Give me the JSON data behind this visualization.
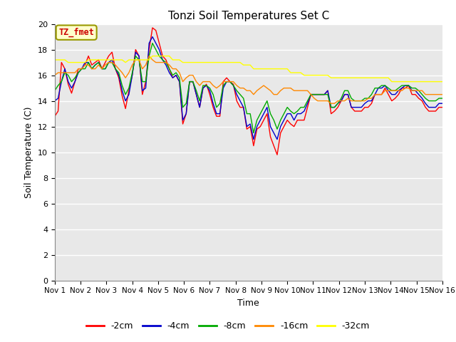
{
  "title": "Tonzi Soil Temperatures Set C",
  "xlabel": "Time",
  "ylabel": "Soil Temperature (C)",
  "ylim": [
    0,
    20
  ],
  "yticks": [
    0,
    2,
    4,
    6,
    8,
    10,
    12,
    14,
    16,
    18,
    20
  ],
  "xtick_labels": [
    "Nov 1",
    "Nov 2",
    "Nov 3",
    "Nov 4",
    "Nov 5",
    "Nov 6",
    "Nov 7",
    "Nov 8",
    "Nov 9",
    "Nov 10",
    "Nov 11",
    "Nov 12",
    "Nov 13",
    "Nov 14",
    "Nov 15",
    "Nov 16"
  ],
  "plot_bg_color": "#e8e8e8",
  "fig_bg_color": "#ffffff",
  "grid_color": "#ffffff",
  "legend_label": "TZ_fmet",
  "legend_box_facecolor": "#ffffcc",
  "legend_box_edgecolor": "#999900",
  "legend_text_color": "#cc0000",
  "series": {
    "neg2cm": {
      "label": "-2cm",
      "color": "#ff0000",
      "values": [
        12.8,
        13.2,
        17.0,
        16.5,
        15.3,
        14.6,
        15.5,
        16.5,
        16.5,
        16.8,
        17.5,
        16.8,
        17.0,
        17.2,
        16.5,
        17.0,
        17.5,
        17.8,
        16.5,
        15.8,
        14.4,
        13.4,
        14.8,
        16.0,
        18.0,
        17.5,
        14.5,
        15.5,
        18.0,
        19.7,
        19.5,
        18.5,
        17.5,
        17.2,
        16.5,
        15.8,
        16.0,
        15.5,
        12.2,
        13.0,
        15.5,
        15.5,
        14.5,
        13.5,
        15.0,
        15.3,
        14.5,
        13.5,
        12.8,
        12.8,
        15.5,
        15.8,
        15.5,
        15.3,
        14.0,
        13.5,
        13.5,
        11.8,
        12.0,
        10.5,
        11.8,
        12.0,
        12.5,
        13.0,
        11.2,
        10.5,
        9.8,
        11.5,
        12.0,
        12.5,
        12.2,
        12.0,
        12.5,
        12.5,
        12.5,
        13.5,
        14.5,
        14.5,
        14.5,
        14.5,
        14.5,
        14.8,
        13.0,
        13.2,
        13.5,
        14.0,
        14.5,
        14.5,
        13.5,
        13.2,
        13.2,
        13.2,
        13.5,
        13.5,
        13.8,
        14.5,
        14.5,
        14.5,
        15.0,
        14.5,
        14.0,
        14.2,
        14.5,
        15.0,
        15.0,
        15.2,
        14.5,
        14.5,
        14.2,
        14.0,
        13.5,
        13.2,
        13.2,
        13.2,
        13.5,
        13.5
      ]
    },
    "neg4cm": {
      "label": "-4cm",
      "color": "#0000cc",
      "values": [
        14.0,
        14.2,
        15.5,
        16.5,
        15.5,
        15.0,
        15.5,
        16.2,
        16.5,
        17.0,
        17.0,
        16.5,
        16.8,
        17.0,
        16.5,
        16.5,
        17.0,
        17.2,
        16.5,
        16.0,
        14.8,
        14.0,
        14.5,
        16.0,
        17.8,
        17.5,
        14.8,
        15.0,
        18.5,
        19.0,
        18.5,
        18.0,
        17.2,
        16.8,
        16.2,
        15.8,
        16.0,
        15.5,
        12.5,
        13.0,
        15.5,
        15.5,
        14.5,
        13.5,
        15.0,
        15.2,
        14.8,
        13.8,
        13.0,
        13.0,
        15.0,
        15.5,
        15.5,
        15.2,
        14.5,
        14.0,
        13.5,
        12.0,
        12.2,
        11.0,
        12.0,
        12.5,
        13.0,
        13.5,
        12.0,
        11.5,
        11.0,
        12.0,
        12.5,
        13.0,
        13.0,
        12.5,
        13.0,
        13.0,
        13.2,
        13.8,
        14.5,
        14.5,
        14.5,
        14.5,
        14.5,
        14.8,
        13.5,
        13.5,
        13.8,
        14.0,
        14.5,
        14.5,
        13.5,
        13.5,
        13.5,
        13.5,
        13.8,
        14.0,
        14.0,
        14.5,
        15.0,
        15.0,
        15.2,
        14.8,
        14.5,
        14.5,
        14.8,
        15.0,
        15.2,
        15.2,
        14.8,
        14.8,
        14.5,
        14.2,
        13.8,
        13.5,
        13.5,
        13.5,
        13.8,
        13.8
      ]
    },
    "neg8cm": {
      "label": "-8cm",
      "color": "#00aa00",
      "values": [
        14.8,
        15.2,
        15.5,
        16.2,
        16.0,
        15.5,
        15.8,
        16.2,
        16.5,
        16.5,
        17.0,
        16.5,
        16.8,
        17.0,
        16.5,
        16.5,
        17.0,
        17.0,
        16.5,
        16.2,
        15.2,
        14.5,
        15.0,
        16.2,
        17.5,
        17.2,
        15.5,
        15.5,
        17.5,
        18.5,
        18.0,
        17.5,
        17.2,
        17.0,
        16.5,
        16.0,
        16.2,
        15.8,
        13.5,
        13.8,
        15.5,
        15.5,
        14.8,
        14.0,
        15.2,
        15.2,
        15.0,
        14.5,
        13.5,
        13.8,
        15.2,
        15.5,
        15.5,
        15.2,
        14.8,
        14.5,
        14.2,
        13.0,
        13.0,
        11.5,
        12.5,
        13.0,
        13.5,
        14.0,
        13.0,
        12.5,
        11.8,
        12.5,
        13.0,
        13.5,
        13.2,
        13.0,
        13.2,
        13.5,
        13.5,
        14.0,
        14.5,
        14.5,
        14.5,
        14.5,
        14.5,
        14.5,
        13.5,
        13.5,
        13.8,
        14.2,
        14.8,
        14.8,
        14.2,
        14.0,
        14.0,
        14.0,
        14.2,
        14.2,
        14.5,
        15.0,
        15.0,
        15.2,
        15.2,
        15.0,
        14.8,
        14.8,
        15.0,
        15.2,
        15.2,
        15.2,
        15.0,
        15.0,
        14.8,
        14.5,
        14.2,
        14.0,
        14.0,
        14.0,
        14.2,
        14.2
      ]
    },
    "neg16cm": {
      "label": "-16cm",
      "color": "#ff8800",
      "values": [
        16.0,
        16.2,
        16.2,
        16.2,
        16.2,
        16.2,
        16.2,
        16.5,
        16.5,
        16.8,
        16.8,
        16.5,
        16.5,
        16.8,
        16.5,
        16.8,
        17.0,
        17.0,
        16.8,
        16.5,
        16.2,
        15.8,
        16.2,
        16.8,
        17.2,
        17.2,
        16.5,
        16.8,
        17.5,
        17.2,
        17.0,
        17.0,
        17.0,
        17.0,
        16.8,
        16.5,
        16.5,
        16.2,
        15.5,
        15.8,
        16.0,
        16.0,
        15.5,
        15.2,
        15.5,
        15.5,
        15.5,
        15.2,
        15.0,
        15.2,
        15.5,
        15.5,
        15.5,
        15.5,
        15.2,
        15.0,
        15.0,
        14.8,
        14.8,
        14.5,
        14.8,
        15.0,
        15.2,
        15.0,
        14.8,
        14.5,
        14.5,
        14.8,
        15.0,
        15.0,
        15.0,
        14.8,
        14.8,
        14.8,
        14.8,
        14.8,
        14.5,
        14.2,
        14.0,
        14.0,
        14.0,
        14.0,
        13.8,
        13.8,
        14.0,
        14.0,
        14.0,
        14.2,
        14.0,
        14.0,
        14.0,
        14.0,
        14.0,
        14.2,
        14.2,
        14.5,
        14.5,
        14.5,
        14.8,
        14.8,
        14.8,
        14.8,
        14.8,
        14.8,
        15.0,
        15.0,
        14.8,
        14.8,
        14.8,
        14.8,
        14.5,
        14.5,
        14.5,
        14.5,
        14.5,
        14.5
      ]
    },
    "neg32cm": {
      "label": "-32cm",
      "color": "#ffff00",
      "values": [
        17.2,
        17.2,
        17.2,
        17.2,
        17.0,
        17.0,
        17.0,
        17.0,
        17.0,
        17.0,
        17.2,
        17.2,
        17.2,
        17.2,
        17.2,
        17.2,
        17.2,
        17.2,
        17.2,
        17.2,
        17.2,
        17.0,
        17.2,
        17.2,
        17.2,
        17.2,
        17.2,
        17.2,
        17.2,
        17.5,
        17.5,
        17.5,
        17.5,
        17.5,
        17.5,
        17.2,
        17.2,
        17.2,
        17.0,
        17.0,
        17.0,
        17.0,
        17.0,
        17.0,
        17.0,
        17.0,
        17.0,
        17.0,
        17.0,
        17.0,
        17.0,
        17.0,
        17.0,
        17.0,
        17.0,
        17.0,
        16.8,
        16.8,
        16.8,
        16.5,
        16.5,
        16.5,
        16.5,
        16.5,
        16.5,
        16.5,
        16.5,
        16.5,
        16.5,
        16.5,
        16.2,
        16.2,
        16.2,
        16.2,
        16.0,
        16.0,
        16.0,
        16.0,
        16.0,
        16.0,
        16.0,
        16.0,
        15.8,
        15.8,
        15.8,
        15.8,
        15.8,
        15.8,
        15.8,
        15.8,
        15.8,
        15.8,
        15.8,
        15.8,
        15.8,
        15.8,
        15.8,
        15.8,
        15.8,
        15.8,
        15.5,
        15.5,
        15.5,
        15.5,
        15.5,
        15.5,
        15.5,
        15.5,
        15.5,
        15.5,
        15.5,
        15.5,
        15.5,
        15.5,
        15.5,
        15.5
      ]
    }
  }
}
